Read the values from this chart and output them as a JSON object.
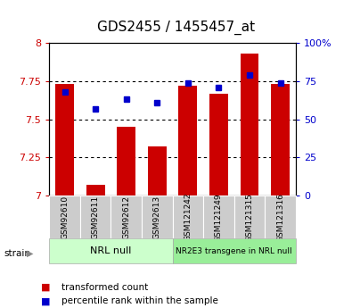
{
  "title": "GDS2455 / 1455457_at",
  "categories": [
    "GSM92610",
    "GSM92611",
    "GSM92612",
    "GSM92613",
    "GSM121242",
    "GSM121249",
    "GSM121315",
    "GSM121316"
  ],
  "bar_values": [
    7.73,
    7.07,
    7.45,
    7.32,
    7.72,
    7.67,
    7.93,
    7.73
  ],
  "percentile_values": [
    68,
    57,
    63,
    61,
    74,
    71,
    79,
    74
  ],
  "bar_color": "#cc0000",
  "dot_color": "#0000cc",
  "ylim_left": [
    7.0,
    8.0
  ],
  "ylim_right": [
    0,
    100
  ],
  "yticks_left": [
    7.0,
    7.25,
    7.5,
    7.75,
    8.0
  ],
  "yticks_right": [
    0,
    25,
    50,
    75,
    100
  ],
  "ytick_labels_left": [
    "7",
    "7.25",
    "7.5",
    "7.75",
    "8"
  ],
  "ytick_labels_right": [
    "0",
    "25",
    "50",
    "75",
    "100%"
  ],
  "group1_label": "NRL null",
  "group2_label": "NR2E3 transgene in NRL null",
  "group1_indices": [
    0,
    1,
    2,
    3
  ],
  "group2_indices": [
    4,
    5,
    6,
    7
  ],
  "group_color1": "#ccffcc",
  "group_color2": "#99ee99",
  "strain_label": "strain",
  "legend_bar_label": "transformed count",
  "legend_dot_label": "percentile rank within the sample",
  "left_axis_color": "#cc0000",
  "right_axis_color": "#0000cc",
  "tick_label_area_color": "#cccccc",
  "title_fontsize": 11,
  "tick_fontsize": 8,
  "label_fontsize": 6.5,
  "bar_width": 0.6
}
